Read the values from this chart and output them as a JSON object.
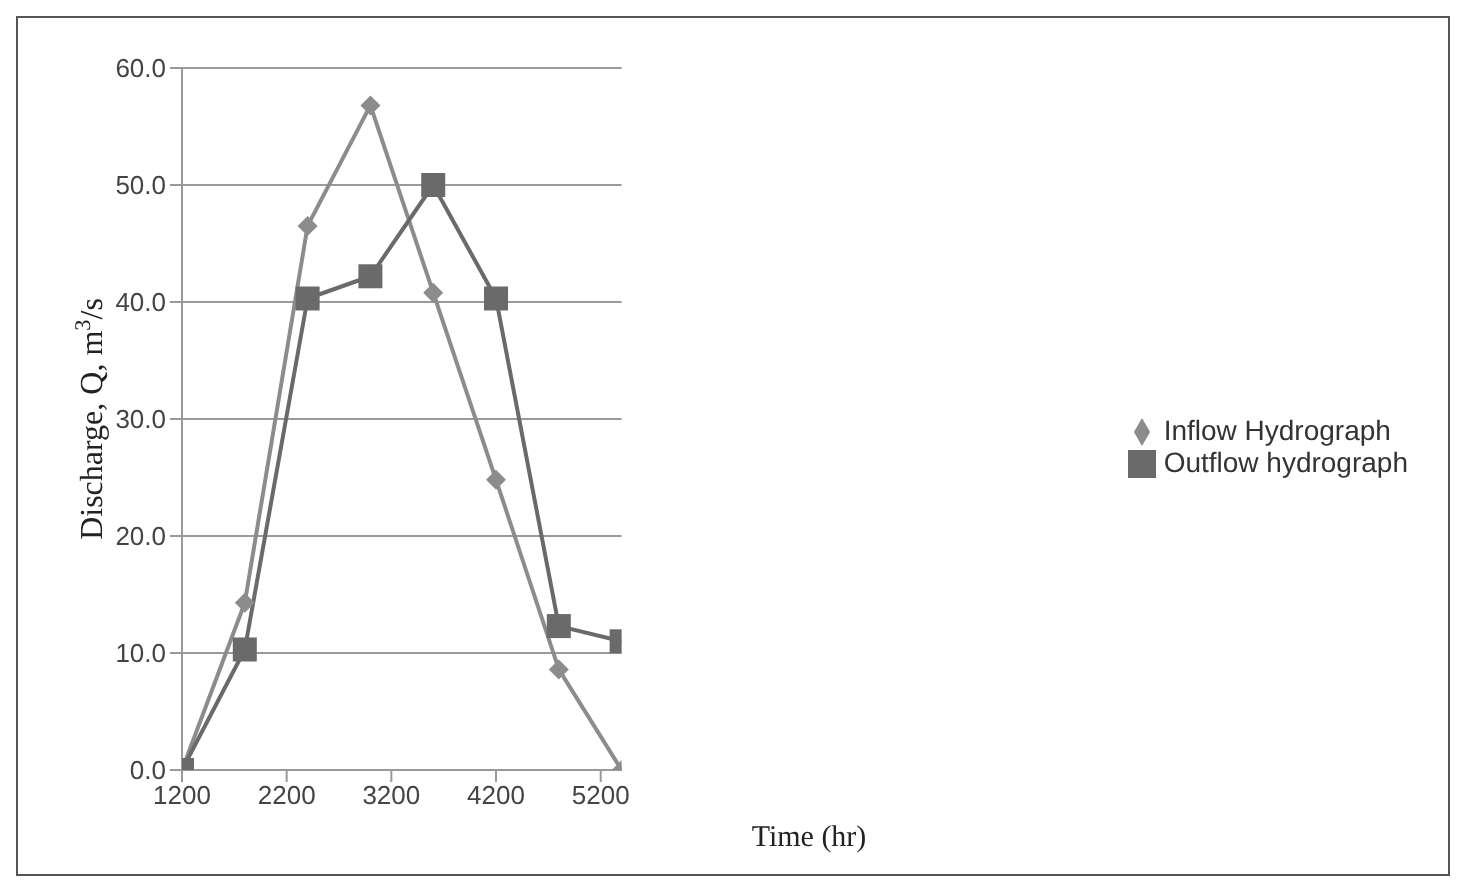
{
  "chart_data": {
    "type": "line",
    "xlabel": "Time (hr)",
    "ylabel": "Discharge, Q, m$^{3}$/s",
    "x": [
      1200,
      1800,
      2400,
      3000,
      3600,
      4200,
      4800,
      5400
    ],
    "series": [
      {
        "name": "Inflow Hydrograph",
        "color": "#8c8c8c",
        "marker": "diamond",
        "values": [
          0,
          14.3,
          46.5,
          56.8,
          40.8,
          24.8,
          8.6,
          0
        ]
      },
      {
        "name": "Outflow hydrograph",
        "color": "#6a6a6a",
        "marker": "square",
        "values": [
          0,
          10.3,
          40.3,
          42.2,
          50,
          40.3,
          12.3,
          11
        ]
      }
    ],
    "xlim": [
      1200,
      5400
    ],
    "xticks": [
      1200,
      2200,
      3200,
      4200,
      5200
    ],
    "ylim": [
      0,
      60
    ],
    "yticks": [
      {
        "value": 0,
        "label": "0.0"
      },
      {
        "value": 10,
        "label": "10.0"
      },
      {
        "value": 20,
        "label": "20.0"
      },
      {
        "value": 30,
        "label": "30.0"
      },
      {
        "value": 40,
        "label": "40.0"
      },
      {
        "value": 50,
        "label": "50.0"
      },
      {
        "value": 60,
        "label": "60.0"
      }
    ],
    "grid": "y",
    "legend": "right"
  }
}
